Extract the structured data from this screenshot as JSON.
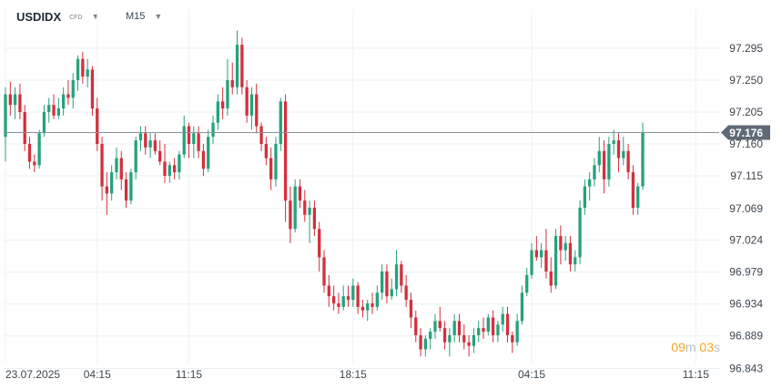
{
  "header": {
    "symbol": "USDIDX",
    "symbol_type": "CFD",
    "timeframe": "M15"
  },
  "countdown": {
    "minutes": "09",
    "minutes_unit": "m",
    "seconds": "03",
    "seconds_unit": "s"
  },
  "colors": {
    "up": "#26a17b",
    "down": "#d32f3d",
    "grid": "#eef1f4",
    "price_line": "#8a9199",
    "price_label_bg": "#5f6a75",
    "axis_text": "#3c4650",
    "countdown": "#f5a623"
  },
  "chart_data": {
    "type": "candlestick",
    "title": "",
    "xlabel": "",
    "ylabel": "",
    "symbol": "USDIDX",
    "timeframe": "M15",
    "ylim": [
      96.82,
      97.34
    ],
    "y_ticks": [
      "97.295",
      "97.250",
      "97.205",
      "97.160",
      "97.115",
      "97.069",
      "97.024",
      "96.979",
      "96.934",
      "96.889",
      "96.843"
    ],
    "x_tick_labels": [
      {
        "label": "23.07.2025",
        "index": 0
      },
      {
        "label": "04:15",
        "index": 19
      },
      {
        "label": "11:15",
        "index": 38
      },
      {
        "label": "18:15",
        "index": 72
      },
      {
        "label": "04:15",
        "index": 109
      },
      {
        "label": "11:15",
        "index": 143
      }
    ],
    "current_price": "97.176",
    "current_price_value": 97.176,
    "grid": true,
    "candles": [
      [
        97.17,
        97.24,
        97.135,
        97.23
      ],
      [
        97.23,
        97.248,
        97.2,
        97.215
      ],
      [
        97.215,
        97.24,
        97.195,
        97.23
      ],
      [
        97.23,
        97.245,
        97.195,
        97.205
      ],
      [
        97.205,
        97.215,
        97.15,
        97.16
      ],
      [
        97.16,
        97.17,
        97.125,
        97.135
      ],
      [
        97.135,
        97.145,
        97.12,
        97.13
      ],
      [
        97.13,
        97.18,
        97.125,
        97.175
      ],
      [
        97.175,
        97.215,
        97.17,
        97.205
      ],
      [
        97.205,
        97.225,
        97.19,
        97.215
      ],
      [
        97.215,
        97.23,
        97.195,
        97.2
      ],
      [
        97.2,
        97.225,
        97.195,
        97.21
      ],
      [
        97.21,
        97.24,
        97.2,
        97.23
      ],
      [
        97.23,
        97.25,
        97.215,
        97.225
      ],
      [
        97.225,
        97.26,
        97.21,
        97.25
      ],
      [
        97.25,
        97.285,
        97.235,
        97.28
      ],
      [
        97.28,
        97.29,
        97.245,
        97.255
      ],
      [
        97.255,
        97.28,
        97.24,
        97.265
      ],
      [
        97.265,
        97.27,
        97.2,
        97.21
      ],
      [
        97.21,
        97.225,
        97.15,
        97.16
      ],
      [
        97.16,
        97.17,
        97.08,
        97.1
      ],
      [
        97.1,
        97.12,
        97.06,
        97.09
      ],
      [
        97.09,
        97.13,
        97.08,
        97.12
      ],
      [
        97.12,
        97.155,
        97.11,
        97.14
      ],
      [
        97.14,
        97.15,
        97.095,
        97.11
      ],
      [
        97.11,
        97.12,
        97.07,
        97.08
      ],
      [
        97.08,
        97.125,
        97.075,
        97.12
      ],
      [
        97.12,
        97.17,
        97.11,
        97.165
      ],
      [
        97.165,
        97.185,
        97.15,
        97.175
      ],
      [
        97.175,
        97.185,
        97.145,
        97.155
      ],
      [
        97.155,
        97.175,
        97.14,
        97.165
      ],
      [
        97.165,
        97.175,
        97.145,
        97.15
      ],
      [
        97.15,
        97.165,
        97.13,
        97.135
      ],
      [
        97.135,
        97.16,
        97.105,
        97.115
      ],
      [
        97.115,
        97.135,
        97.105,
        97.13
      ],
      [
        97.13,
        97.14,
        97.11,
        97.12
      ],
      [
        97.12,
        97.15,
        97.11,
        97.145
      ],
      [
        97.145,
        97.2,
        97.14,
        97.185
      ],
      [
        97.185,
        97.19,
        97.14,
        97.16
      ],
      [
        97.16,
        97.185,
        97.14,
        97.175
      ],
      [
        97.175,
        97.185,
        97.14,
        97.15
      ],
      [
        97.15,
        97.16,
        97.115,
        97.125
      ],
      [
        97.125,
        97.18,
        97.12,
        97.17
      ],
      [
        97.17,
        97.2,
        97.16,
        97.19
      ],
      [
        97.19,
        97.23,
        97.18,
        97.22
      ],
      [
        97.22,
        97.24,
        97.195,
        97.21
      ],
      [
        97.21,
        97.28,
        97.2,
        97.25
      ],
      [
        97.25,
        97.275,
        97.23,
        97.24
      ],
      [
        97.24,
        97.32,
        97.23,
        97.3
      ],
      [
        97.3,
        97.31,
        97.23,
        97.24
      ],
      [
        97.24,
        97.25,
        97.19,
        97.2
      ],
      [
        97.2,
        97.24,
        97.18,
        97.23
      ],
      [
        97.23,
        97.245,
        97.175,
        97.185
      ],
      [
        97.185,
        97.19,
        97.15,
        97.16
      ],
      [
        97.16,
        97.17,
        97.13,
        97.14
      ],
      [
        97.14,
        97.155,
        97.095,
        97.11
      ],
      [
        97.11,
        97.17,
        97.1,
        97.16
      ],
      [
        97.16,
        97.225,
        97.15,
        97.22
      ],
      [
        97.22,
        97.23,
        97.05,
        97.08
      ],
      [
        97.08,
        97.1,
        97.02,
        97.04
      ],
      [
        97.04,
        97.11,
        97.035,
        97.1
      ],
      [
        97.1,
        97.11,
        97.07,
        97.08
      ],
      [
        97.08,
        97.095,
        97.05,
        97.06
      ],
      [
        97.06,
        97.08,
        97.02,
        97.07
      ],
      [
        97.07,
        97.08,
        97.03,
        97.04
      ],
      [
        97.04,
        97.05,
        96.98,
        97.0
      ],
      [
        97.0,
        97.01,
        96.95,
        96.96
      ],
      [
        96.96,
        96.975,
        96.93,
        96.945
      ],
      [
        96.945,
        96.96,
        96.925,
        96.935
      ],
      [
        96.935,
        96.95,
        96.92,
        96.93
      ],
      [
        96.93,
        96.96,
        96.925,
        96.945
      ],
      [
        96.945,
        96.96,
        96.93,
        96.94
      ],
      [
        96.94,
        96.97,
        96.93,
        96.96
      ],
      [
        96.96,
        96.965,
        96.92,
        96.93
      ],
      [
        96.93,
        96.94,
        96.915,
        96.925
      ],
      [
        96.925,
        96.94,
        96.91,
        96.935
      ],
      [
        96.935,
        96.95,
        96.92,
        96.93
      ],
      [
        96.93,
        96.96,
        96.925,
        96.95
      ],
      [
        96.95,
        96.99,
        96.94,
        96.98
      ],
      [
        96.98,
        96.99,
        96.935,
        96.945
      ],
      [
        96.945,
        96.97,
        96.94,
        96.955
      ],
      [
        96.955,
        97.01,
        96.945,
        96.99
      ],
      [
        96.99,
        96.995,
        96.95,
        96.96
      ],
      [
        96.96,
        96.975,
        96.93,
        96.94
      ],
      [
        96.94,
        96.95,
        96.9,
        96.915
      ],
      [
        96.915,
        96.925,
        96.88,
        96.89
      ],
      [
        96.89,
        96.9,
        96.86,
        96.87
      ],
      [
        96.87,
        96.89,
        96.86,
        96.885
      ],
      [
        96.885,
        96.9,
        96.87,
        96.895
      ],
      [
        96.895,
        96.92,
        96.885,
        96.91
      ],
      [
        96.91,
        96.93,
        96.895,
        96.9
      ],
      [
        96.9,
        96.91,
        96.87,
        96.88
      ],
      [
        96.88,
        96.9,
        96.86,
        96.89
      ],
      [
        96.89,
        96.92,
        96.88,
        96.91
      ],
      [
        96.91,
        96.92,
        96.88,
        96.89
      ],
      [
        96.89,
        96.905,
        96.87,
        96.88
      ],
      [
        96.88,
        96.89,
        96.86,
        96.875
      ],
      [
        96.875,
        96.9,
        96.865,
        96.89
      ],
      [
        96.89,
        96.91,
        96.88,
        96.9
      ],
      [
        96.9,
        96.915,
        96.885,
        96.895
      ],
      [
        96.895,
        96.92,
        96.89,
        96.915
      ],
      [
        96.915,
        96.925,
        96.88,
        96.89
      ],
      [
        96.89,
        96.91,
        96.88,
        96.905
      ],
      [
        96.905,
        96.93,
        96.895,
        96.92
      ],
      [
        96.92,
        96.93,
        96.88,
        96.89
      ],
      [
        96.89,
        96.895,
        96.865,
        96.88
      ],
      [
        96.88,
        96.92,
        96.875,
        96.91
      ],
      [
        96.91,
        96.96,
        96.905,
        96.95
      ],
      [
        96.95,
        96.985,
        96.945,
        96.975
      ],
      [
        96.975,
        97.02,
        96.97,
        97.01
      ],
      [
        97.01,
        97.03,
        96.995,
        97.0
      ],
      [
        97.0,
        97.02,
        96.985,
        97.01
      ],
      [
        97.01,
        97.04,
        96.97,
        96.98
      ],
      [
        96.98,
        97.0,
        96.95,
        96.96
      ],
      [
        96.96,
        97.04,
        96.955,
        97.03
      ],
      [
        97.03,
        97.045,
        96.99,
        97.01
      ],
      [
        97.01,
        97.03,
        96.995,
        97.02
      ],
      [
        97.02,
        97.03,
        96.98,
        96.99
      ],
      [
        96.99,
        97.01,
        96.98,
        97.0
      ],
      [
        97.0,
        97.08,
        96.99,
        97.07
      ],
      [
        97.07,
        97.11,
        97.06,
        97.1
      ],
      [
        97.1,
        97.12,
        97.08,
        97.11
      ],
      [
        97.11,
        97.14,
        97.1,
        97.13
      ],
      [
        97.13,
        97.17,
        97.12,
        97.15
      ],
      [
        97.15,
        97.165,
        97.09,
        97.11
      ],
      [
        97.11,
        97.17,
        97.1,
        97.16
      ],
      [
        97.16,
        97.18,
        97.145,
        97.165
      ],
      [
        97.165,
        97.175,
        97.12,
        97.14
      ],
      [
        97.14,
        97.17,
        97.13,
        97.15
      ],
      [
        97.15,
        97.16,
        97.11,
        97.12
      ],
      [
        97.12,
        97.13,
        97.06,
        97.07
      ],
      [
        97.07,
        97.105,
        97.06,
        97.1
      ],
      [
        97.1,
        97.19,
        97.095,
        97.176
      ]
    ]
  }
}
